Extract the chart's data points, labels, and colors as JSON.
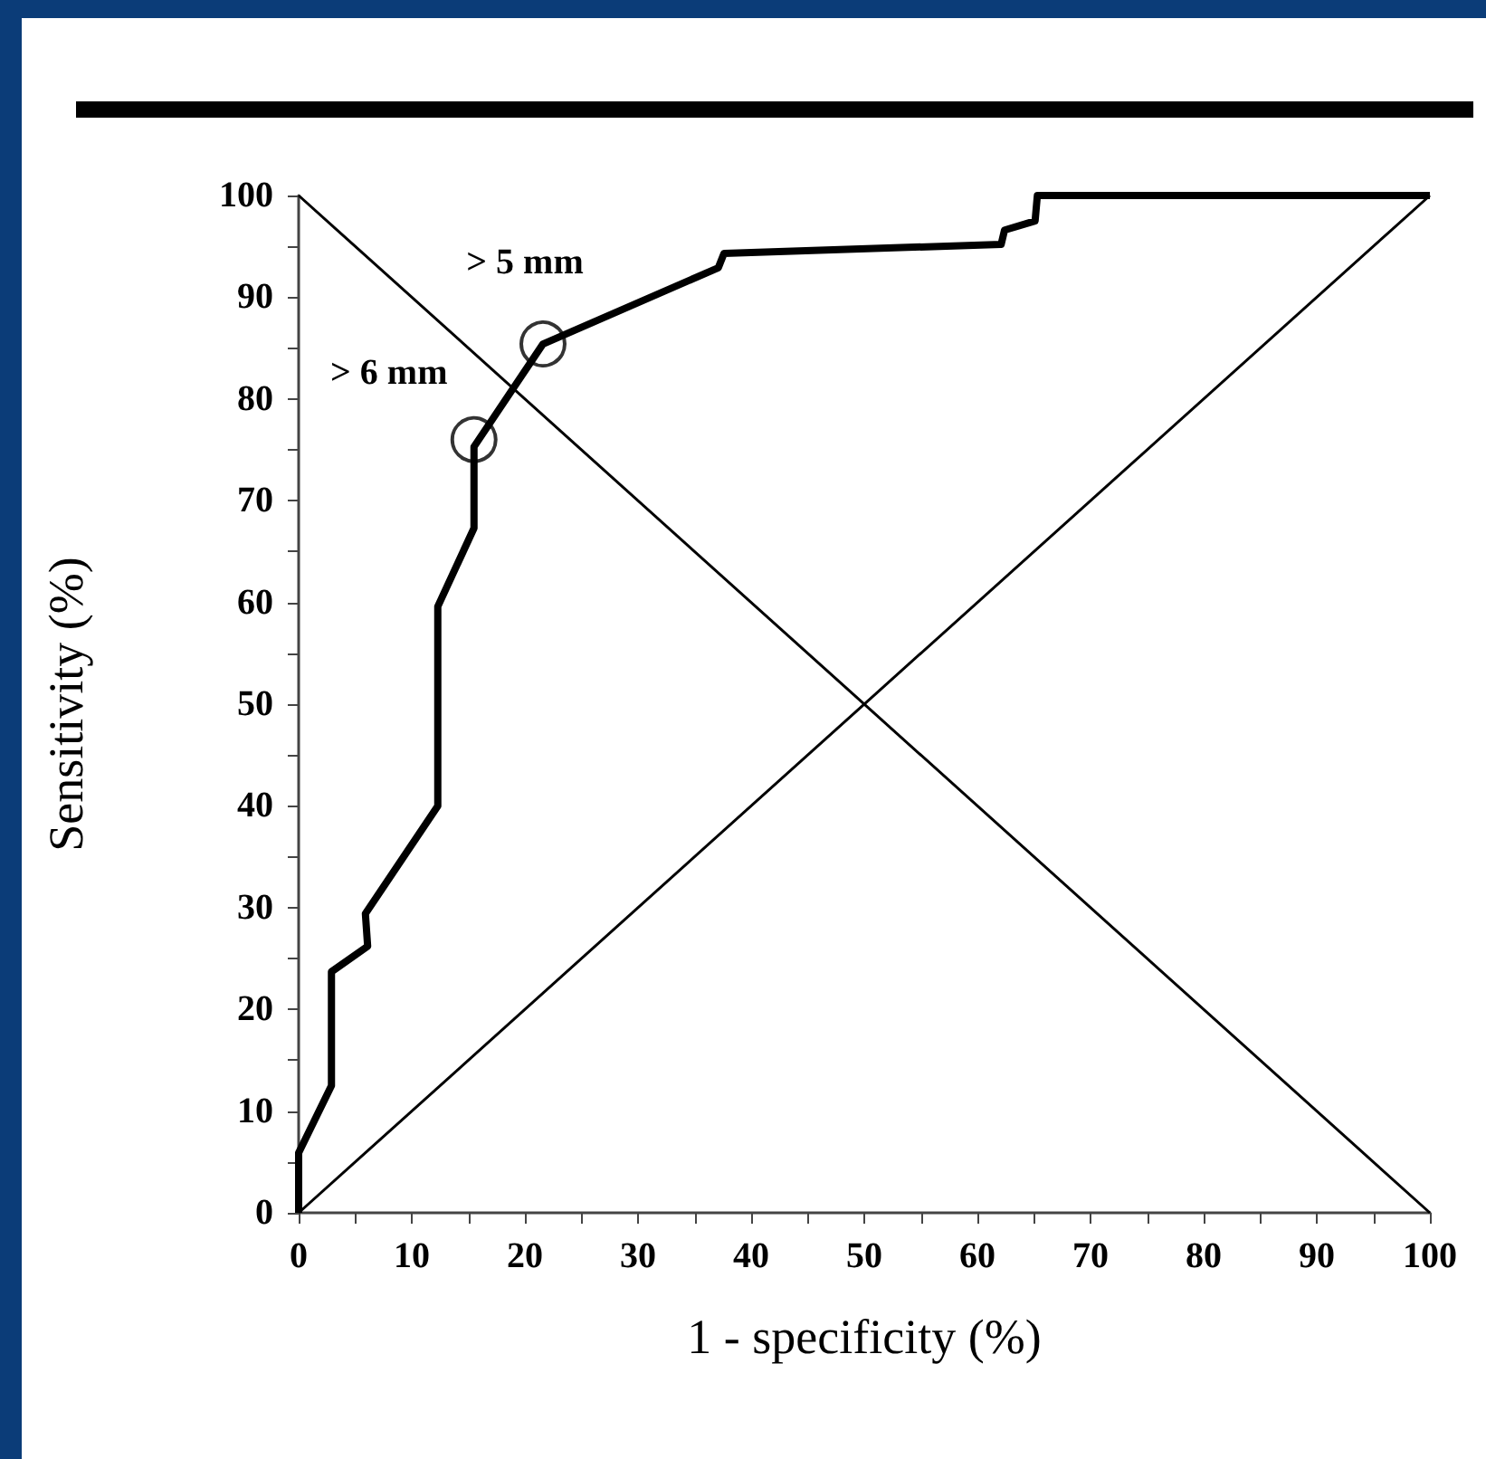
{
  "chart_data": {
    "type": "line",
    "xlabel": "1 - specificity (%)",
    "ylabel": "Sensitivity (%)",
    "xlim": [
      0,
      100
    ],
    "ylim": [
      0,
      100
    ],
    "xticks": [
      0,
      {
        "value": 5,
        "label": null
      },
      10,
      {
        "value": 15,
        "label": null
      },
      20,
      {
        "value": 25,
        "label": null
      },
      30,
      {
        "value": 35,
        "label": null
      },
      40,
      {
        "value": 45,
        "label": null
      },
      50,
      {
        "value": 55,
        "label": null
      },
      60,
      {
        "value": 65,
        "label": null
      },
      70,
      {
        "value": 75,
        "label": null
      },
      80,
      {
        "value": 85,
        "label": null
      },
      90,
      {
        "value": 95,
        "label": null
      },
      100
    ],
    "yticks": [
      0,
      {
        "value": 5,
        "label": null
      },
      10,
      {
        "value": 15,
        "label": null
      },
      20,
      {
        "value": 25,
        "label": null
      },
      30,
      {
        "value": 35,
        "label": null
      },
      40,
      {
        "value": 45,
        "label": null
      },
      50,
      {
        "value": 55,
        "label": null
      },
      60,
      {
        "value": 65,
        "label": null
      },
      70,
      {
        "value": 75,
        "label": null
      },
      80,
      {
        "value": 85,
        "label": null
      },
      90,
      {
        "value": 95,
        "label": null
      },
      100
    ],
    "grid": false,
    "marker": "none",
    "series": [
      {
        "color": "#000000",
        "x": [
          0,
          0,
          2.9,
          2.9,
          6.1,
          5.9,
          12.3,
          12.3,
          15.5,
          15.5,
          21.6,
          37.1,
          37.6,
          62.1,
          62.4,
          65.1,
          65.3,
          100
        ],
        "values": [
          0,
          5.9,
          12.5,
          23.7,
          26.2,
          29.4,
          40,
          59.6,
          67.3,
          75.3,
          85.4,
          92.9,
          94.3,
          95.2,
          96.6,
          97.5,
          100,
          100
        ]
      },
      {
        "color": "#000000",
        "x": [
          0,
          100
        ],
        "values": [
          0,
          100
        ]
      },
      {
        "color": "#000000",
        "x": [
          0,
          100
        ],
        "values": [
          100,
          0
        ]
      },
      {
        "type": "scatter",
        "marker": "circle",
        "color": "#000000",
        "x": [
          15.5,
          21.6
        ],
        "values": [
          76,
          85.4
        ]
      }
    ],
    "annotations": [
      {
        "text": "> 6 mm",
        "x": 15.5,
        "y": 76
      },
      {
        "text": "> 5 mm",
        "x": 21.6,
        "y": 85.4
      }
    ]
  }
}
